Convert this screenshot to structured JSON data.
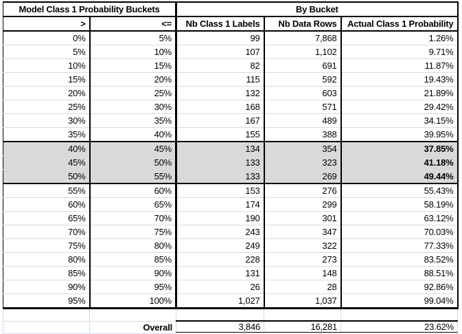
{
  "table": {
    "group_headers": [
      {
        "label": "Model Class 1 Probability Buckets",
        "span": 2
      },
      {
        "label": "By Bucket",
        "span": 3
      }
    ],
    "columns": [
      ">",
      "<=",
      "Nb Class 1 Labels",
      "Nb Data Rows",
      "Actual Class 1 Probability"
    ],
    "rows": [
      {
        "gt": "0%",
        "lte": "5%",
        "nb_class1_labels": "99",
        "nb_data_rows": "7,868",
        "actual_prob": "1.26%",
        "highlighted": false
      },
      {
        "gt": "5%",
        "lte": "10%",
        "nb_class1_labels": "107",
        "nb_data_rows": "1,102",
        "actual_prob": "9.71%",
        "highlighted": false
      },
      {
        "gt": "10%",
        "lte": "15%",
        "nb_class1_labels": "82",
        "nb_data_rows": "691",
        "actual_prob": "11.87%",
        "highlighted": false
      },
      {
        "gt": "15%",
        "lte": "20%",
        "nb_class1_labels": "115",
        "nb_data_rows": "592",
        "actual_prob": "19.43%",
        "highlighted": false
      },
      {
        "gt": "20%",
        "lte": "25%",
        "nb_class1_labels": "132",
        "nb_data_rows": "603",
        "actual_prob": "21.89%",
        "highlighted": false
      },
      {
        "gt": "25%",
        "lte": "30%",
        "nb_class1_labels": "168",
        "nb_data_rows": "571",
        "actual_prob": "29.42%",
        "highlighted": false
      },
      {
        "gt": "30%",
        "lte": "35%",
        "nb_class1_labels": "167",
        "nb_data_rows": "489",
        "actual_prob": "34.15%",
        "highlighted": false
      },
      {
        "gt": "35%",
        "lte": "40%",
        "nb_class1_labels": "155",
        "nb_data_rows": "388",
        "actual_prob": "39.95%",
        "highlighted": false
      },
      {
        "gt": "40%",
        "lte": "45%",
        "nb_class1_labels": "134",
        "nb_data_rows": "354",
        "actual_prob": "37.85%",
        "highlighted": true
      },
      {
        "gt": "45%",
        "lte": "50%",
        "nb_class1_labels": "133",
        "nb_data_rows": "323",
        "actual_prob": "41.18%",
        "highlighted": true
      },
      {
        "gt": "50%",
        "lte": "55%",
        "nb_class1_labels": "133",
        "nb_data_rows": "269",
        "actual_prob": "49.44%",
        "highlighted": true
      },
      {
        "gt": "55%",
        "lte": "60%",
        "nb_class1_labels": "153",
        "nb_data_rows": "276",
        "actual_prob": "55.43%",
        "highlighted": false
      },
      {
        "gt": "60%",
        "lte": "65%",
        "nb_class1_labels": "174",
        "nb_data_rows": "299",
        "actual_prob": "58.19%",
        "highlighted": false
      },
      {
        "gt": "65%",
        "lte": "70%",
        "nb_class1_labels": "190",
        "nb_data_rows": "301",
        "actual_prob": "63.12%",
        "highlighted": false
      },
      {
        "gt": "70%",
        "lte": "75%",
        "nb_class1_labels": "243",
        "nb_data_rows": "347",
        "actual_prob": "70.03%",
        "highlighted": false
      },
      {
        "gt": "75%",
        "lte": "80%",
        "nb_class1_labels": "249",
        "nb_data_rows": "322",
        "actual_prob": "77.33%",
        "highlighted": false
      },
      {
        "gt": "80%",
        "lte": "85%",
        "nb_class1_labels": "228",
        "nb_data_rows": "273",
        "actual_prob": "83.52%",
        "highlighted": false
      },
      {
        "gt": "85%",
        "lte": "90%",
        "nb_class1_labels": "131",
        "nb_data_rows": "148",
        "actual_prob": "88.51%",
        "highlighted": false
      },
      {
        "gt": "90%",
        "lte": "95%",
        "nb_class1_labels": "26",
        "nb_data_rows": "28",
        "actual_prob": "92.86%",
        "highlighted": false
      },
      {
        "gt": "95%",
        "lte": "100%",
        "nb_class1_labels": "1,027",
        "nb_data_rows": "1,037",
        "actual_prob": "99.04%",
        "highlighted": false
      }
    ],
    "overall": {
      "label": "Overall",
      "nb_class1_labels": "3,846",
      "nb_data_rows": "16,281",
      "actual_prob": "23.62%"
    }
  },
  "colors": {
    "highlight_bg": "#d9d9d9",
    "gridline": "#d4dbe5",
    "border": "#000000"
  }
}
